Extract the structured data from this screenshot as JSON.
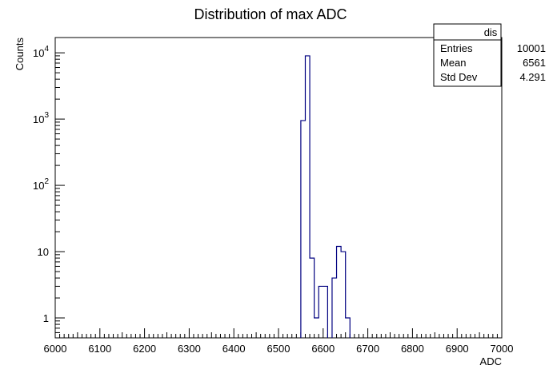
{
  "chart_data": {
    "type": "histogram",
    "title": "Distribution of max ADC",
    "xlabel": "ADC",
    "ylabel": "Counts",
    "xlim": [
      6000,
      7000
    ],
    "ylim": [
      0.5,
      17000
    ],
    "yscale": "log",
    "grid": false,
    "line_color": "#000080",
    "x_ticks": [
      "6000",
      "6100",
      "6200",
      "6300",
      "6400",
      "6500",
      "6600",
      "6700",
      "6800",
      "6900",
      "7000"
    ],
    "y_ticks": [
      {
        "value": 1,
        "base": "1",
        "exp": ""
      },
      {
        "value": 10,
        "base": "10",
        "exp": ""
      },
      {
        "value": 100,
        "base": "10",
        "exp": "2"
      },
      {
        "value": 1000,
        "base": "10",
        "exp": "3"
      },
      {
        "value": 10000,
        "base": "10",
        "exp": "4"
      }
    ],
    "bin_width": 10,
    "bins": [
      {
        "x0": 6550,
        "count": 950
      },
      {
        "x0": 6560,
        "count": 9000
      },
      {
        "x0": 6570,
        "count": 8
      },
      {
        "x0": 6580,
        "count": 1
      },
      {
        "x0": 6590,
        "count": 3
      },
      {
        "x0": 6600,
        "count": 3
      },
      {
        "x0": 6620,
        "count": 4
      },
      {
        "x0": 6630,
        "count": 12
      },
      {
        "x0": 6640,
        "count": 10
      },
      {
        "x0": 6650,
        "count": 1
      }
    ],
    "stats_box": {
      "name": "dis",
      "rows": [
        {
          "label": "Entries",
          "value": "10001"
        },
        {
          "label": "Mean",
          "value": "6561"
        },
        {
          "label": "Std Dev",
          "value": "4.291"
        }
      ]
    }
  }
}
